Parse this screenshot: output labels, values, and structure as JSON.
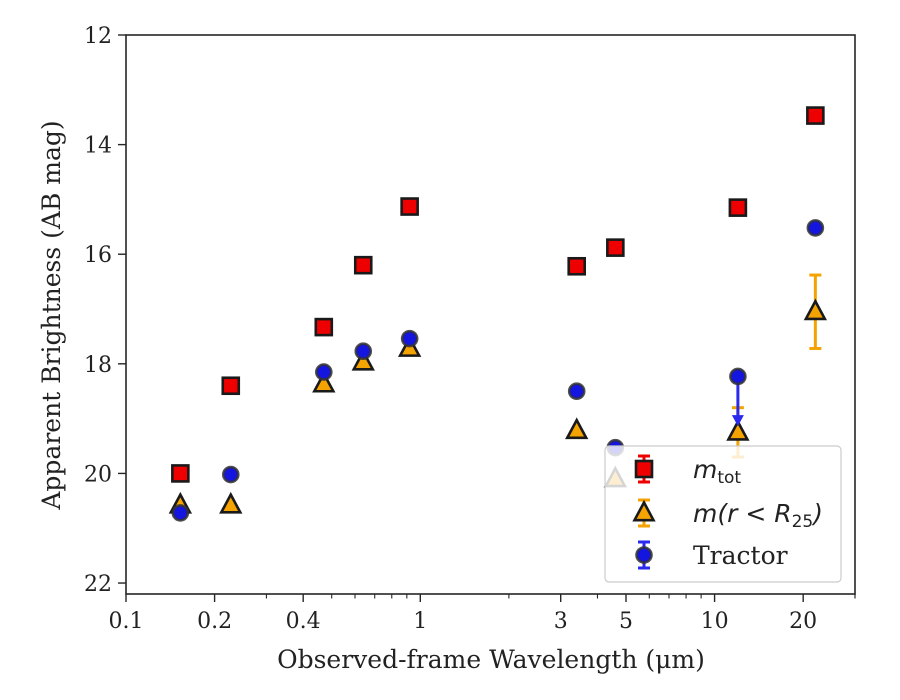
{
  "chart_data": {
    "type": "scatter",
    "xlabel": "Observed-frame Wavelength (μm)",
    "ylabel": "Apparent Brightness (AB mag)",
    "x_scale": "log",
    "xlim": [
      0.1,
      30
    ],
    "ylim": [
      22.2,
      12
    ],
    "y_inverted": true,
    "x_ticks": [
      {
        "value": 0.1,
        "label": "0.1"
      },
      {
        "value": 0.2,
        "label": "0.2"
      },
      {
        "value": 0.4,
        "label": "0.4"
      },
      {
        "value": 1,
        "label": "1"
      },
      {
        "value": 3,
        "label": "3"
      },
      {
        "value": 5,
        "label": "5"
      },
      {
        "value": 10,
        "label": "10"
      },
      {
        "value": 20,
        "label": "20"
      }
    ],
    "y_ticks": [
      {
        "value": 12,
        "label": "12"
      },
      {
        "value": 14,
        "label": "14"
      },
      {
        "value": 16,
        "label": "16"
      },
      {
        "value": 18,
        "label": "18"
      },
      {
        "value": 20,
        "label": "20"
      },
      {
        "value": 22,
        "label": "22"
      }
    ],
    "grid": false,
    "legend_position": "bottom-right",
    "series": [
      {
        "key": "mtot",
        "legend_main": "m",
        "legend_sub": "tot",
        "legend_suffix": "",
        "marker": "square",
        "face_color": "#ee0000",
        "edge_color": "#1a1a1a",
        "error_color": "#ee0000",
        "points": [
          {
            "x": 0.153,
            "y": 20.0
          },
          {
            "x": 0.227,
            "y": 18.4
          },
          {
            "x": 0.47,
            "y": 17.33
          },
          {
            "x": 0.64,
            "y": 16.2
          },
          {
            "x": 0.92,
            "y": 15.13
          },
          {
            "x": 3.4,
            "y": 16.22
          },
          {
            "x": 4.6,
            "y": 15.88
          },
          {
            "x": 12.0,
            "y": 15.15
          },
          {
            "x": 22.0,
            "y": 13.47
          }
        ]
      },
      {
        "key": "mr25",
        "legend_main": "m(r < R",
        "legend_sub": "25",
        "legend_suffix": ")",
        "marker": "triangle",
        "face_color": "#f4a300",
        "edge_color": "#1a1a1a",
        "error_color": "#f4a300",
        "points": [
          {
            "x": 0.153,
            "y": 20.58
          },
          {
            "x": 0.227,
            "y": 20.58
          },
          {
            "x": 0.47,
            "y": 18.37
          },
          {
            "x": 0.64,
            "y": 17.97
          },
          {
            "x": 0.92,
            "y": 17.72
          },
          {
            "x": 3.4,
            "y": 19.22
          },
          {
            "x": 4.6,
            "y": 20.1
          },
          {
            "x": 12.0,
            "y": 19.25,
            "yerr": 0.45
          },
          {
            "x": 22.0,
            "y": 17.05,
            "yerr": 0.67
          }
        ]
      },
      {
        "key": "tractor",
        "legend_main": "Tractor",
        "legend_sub": "",
        "legend_suffix": "",
        "marker": "circle",
        "face_color": "#1515e0",
        "edge_color": "#333333",
        "error_color": "#2a2aee",
        "points": [
          {
            "x": 0.153,
            "y": 20.72
          },
          {
            "x": 0.227,
            "y": 20.02
          },
          {
            "x": 0.47,
            "y": 18.15
          },
          {
            "x": 0.64,
            "y": 17.77
          },
          {
            "x": 0.92,
            "y": 17.54
          },
          {
            "x": 3.4,
            "y": 18.5
          },
          {
            "x": 4.6,
            "y": 19.53
          },
          {
            "x": 12.0,
            "y": 18.23,
            "upper_limit_to": 19.1
          },
          {
            "x": 22.0,
            "y": 15.52
          }
        ]
      }
    ]
  }
}
